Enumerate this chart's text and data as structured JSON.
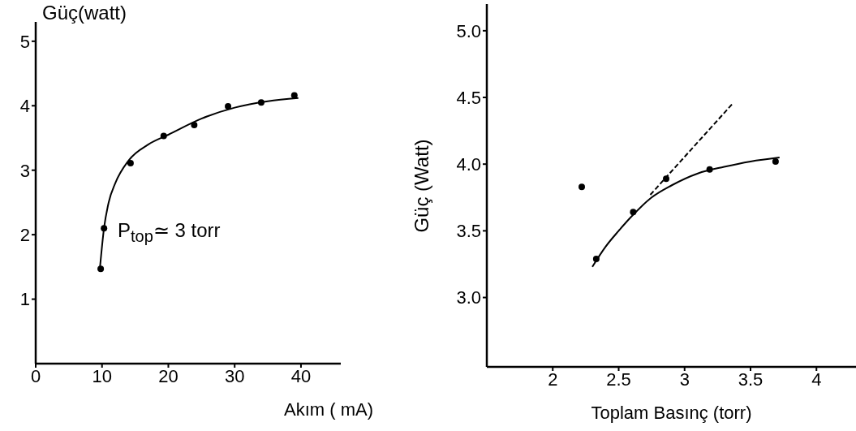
{
  "chart_data": [
    {
      "type": "scatter",
      "ylabel": "Güç(watt)",
      "xlabel": "Akım ( mA)",
      "xlim": [
        0,
        46
      ],
      "ylim": [
        0,
        5.3
      ],
      "xticks": [
        0,
        10,
        20,
        30,
        40
      ],
      "yticks": [
        1,
        2,
        3,
        4,
        5
      ],
      "grid": false,
      "legend": false,
      "marker": "circle",
      "annotations": [
        "P$_{top}$≃ 3 torr"
      ],
      "series": [
        {
          "color": "#000000",
          "x": [
            9.8,
            10.3,
            14.3,
            19.3,
            23.9,
            29,
            34,
            39
          ],
          "values": [
            1.47,
            2.1,
            3.11,
            3.53,
            3.7,
            3.99,
            4.05,
            4.16
          ]
        },
        {
          "type": "line",
          "color": "#000000",
          "line_style": "solid",
          "marker": "none",
          "x": [
            9.7,
            10.3,
            11,
            12,
            14,
            17,
            20,
            25,
            30,
            35,
            39.6
          ],
          "values": [
            1.5,
            2.1,
            2.5,
            2.8,
            3.15,
            3.4,
            3.55,
            3.8,
            3.97,
            4.07,
            4.12
          ]
        }
      ]
    },
    {
      "type": "scatter",
      "ylabel": "Güç (Watt)",
      "xlabel": "Toplam Basınç (torr)",
      "xlim": [
        1.5,
        4.3
      ],
      "ylim": [
        2.48,
        5.2
      ],
      "xticks": [
        2,
        2.5,
        3,
        3.5,
        4
      ],
      "yticks": [
        {
          "value": 3,
          "label": "3.0"
        },
        {
          "value": 3.5,
          "label": "3.5"
        },
        {
          "value": 4,
          "label": "4.0"
        },
        {
          "value": 4.5,
          "label": "4.5"
        },
        {
          "value": 5,
          "label": "5.0"
        }
      ],
      "grid": false,
      "legend": false,
      "marker": "circle",
      "series": [
        {
          "color": "#000000",
          "x": [
            2.22,
            2.33,
            2.61,
            2.86,
            3.19,
            3.69
          ],
          "values": [
            3.83,
            3.29,
            3.64,
            3.89,
            3.96,
            4.02
          ]
        },
        {
          "type": "line",
          "color": "#000000",
          "line_style": "solid",
          "marker": "none",
          "x": [
            2.3,
            2.4,
            2.5,
            2.6,
            2.75,
            2.9,
            3.1,
            3.3,
            3.5,
            3.72
          ],
          "values": [
            3.23,
            3.38,
            3.5,
            3.61,
            3.75,
            3.84,
            3.93,
            3.98,
            4.02,
            4.05
          ]
        },
        {
          "type": "line",
          "color": "#000000",
          "line_style": "dashed",
          "marker": "none",
          "x": [
            2.74,
            3.37
          ],
          "values": [
            3.77,
            4.46
          ]
        }
      ]
    }
  ]
}
